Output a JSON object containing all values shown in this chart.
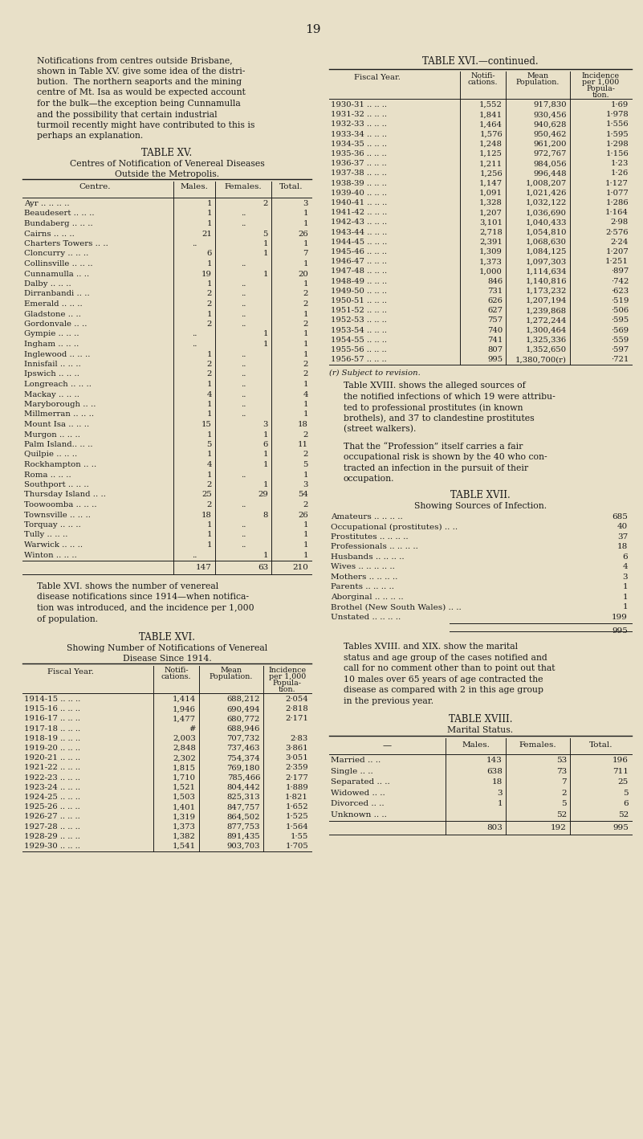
{
  "bg_color": "#e8e0c8",
  "text_color": "#1a1a1a",
  "page_number": "19",
  "left_text_paragraphs": [
    "Notifications from centres outside Brisbane,",
    "shown in Table XV. give some idea of the distri-",
    "bution.  The northern seaports and the mining",
    "centre of Mt. Isa as would be expected account",
    "for the bulk—the exception being Cunnamulla",
    "and the possibility that certain industrial",
    "turmoil recently might have contributed to this is",
    "perhaps an explanation."
  ],
  "table_xv_title": "TABLE XV.",
  "table_xv_subtitle1": "Centres of Notification of Venereal Diseases",
  "table_xv_subtitle2": "Outside the Metropolis.",
  "table_xv_rows": [
    [
      "Ayr .. .. .. ..",
      "1",
      "2",
      "3"
    ],
    [
      "Beaudesert .. .. ..",
      "1",
      "..",
      "1"
    ],
    [
      "Bundaberg .. .. ..",
      "1",
      "..",
      "1"
    ],
    [
      "Cairns .. .. ..",
      "21",
      "5",
      "26"
    ],
    [
      "Charters Towers .. ..",
      "..",
      "1",
      "1"
    ],
    [
      "Cloncurry .. .. ..",
      "6",
      "1",
      "7"
    ],
    [
      "Collinsville .. .. ..",
      "1",
      "..",
      "1"
    ],
    [
      "Cunnamulla .. ..",
      "19",
      "1",
      "20"
    ],
    [
      "Dalby .. .. ..",
      "1",
      "..",
      "1"
    ],
    [
      "Dirranbandi .. ..",
      "2",
      "..",
      "2"
    ],
    [
      "Emerald .. .. ..",
      "2",
      "..",
      "2"
    ],
    [
      "Gladstone .. ..",
      "1",
      "..",
      "1"
    ],
    [
      "Gordonvale .. ..",
      "2",
      "..",
      "2"
    ],
    [
      "Gympie .. .. ..",
      "..",
      "1",
      "1"
    ],
    [
      "Ingham .. .. ..",
      "..",
      "1",
      "1"
    ],
    [
      "Inglewood .. .. ..",
      "1",
      "..",
      "1"
    ],
    [
      "Innisfail .. .. ..",
      "2",
      "..",
      "2"
    ],
    [
      "Ipswich .. .. ..",
      "2",
      "..",
      "2"
    ],
    [
      "Longreach .. .. ..",
      "1",
      "..",
      "1"
    ],
    [
      "Mackay .. .. ..",
      "4",
      "..",
      "4"
    ],
    [
      "Maryborough .. ..",
      "1",
      "..",
      "1"
    ],
    [
      "Millmerran .. .. ..",
      "1",
      "..",
      "1"
    ],
    [
      "Mount Isa .. .. ..",
      "15",
      "3",
      "18"
    ],
    [
      "Murgon .. .. ..",
      "1",
      "1",
      "2"
    ],
    [
      "Palm Island.. .. ..",
      "5",
      "6",
      "11"
    ],
    [
      "Quilpie .. .. ..",
      "1",
      "1",
      "2"
    ],
    [
      "Rockhampton .. ..",
      "4",
      "1",
      "5"
    ],
    [
      "Roma .. .. ..",
      "1",
      "..",
      "1"
    ],
    [
      "Southport .. .. ..",
      "2",
      "1",
      "3"
    ],
    [
      "Thursday Island .. ..",
      "25",
      "29",
      "54"
    ],
    [
      "Toowoomba .. .. ..",
      "2",
      "..",
      "2"
    ],
    [
      "Townsville .. .. ..",
      "18",
      "8",
      "26"
    ],
    [
      "Torquay .. .. ..",
      "1",
      "..",
      "1"
    ],
    [
      "Tully .. .. ..",
      "1",
      "..",
      "1"
    ],
    [
      "Warwick .. .. ..",
      "1",
      "..",
      "1"
    ],
    [
      "Winton .. .. ..",
      "..",
      "1",
      "1"
    ]
  ],
  "table_xv_totals": [
    "",
    "147",
    "63",
    "210"
  ],
  "left_bottom_text": [
    "Table XVI. shows the number of venereal",
    "disease notifications since 1914—when notifica-",
    "tion was introduced, and the incidence per 1,000",
    "of population."
  ],
  "table_xvi_title": "TABLE XVI.",
  "table_xvi_subtitle": "Showing Number of Notifications of Venereal",
  "table_xvi_subtitle2": "Disease Since 1914.",
  "table_xvi_rows": [
    [
      "1914-15 .. .. ..",
      "1,414",
      "688,212",
      "2·054"
    ],
    [
      "1915-16 .. .. ..",
      "1,946",
      "690,494",
      "2·818"
    ],
    [
      "1916-17 .. .. ..",
      "1,477",
      "680,772",
      "2·171"
    ],
    [
      "1917-18 .. .. ..",
      "#",
      "688,946",
      ""
    ],
    [
      "1918-19 .. .. ..",
      "2,003",
      "707,732",
      "2·83"
    ],
    [
      "1919-20 .. .. ..",
      "2,848",
      "737,463",
      "3·861"
    ],
    [
      "1920-21 .. .. ..",
      "2,302",
      "754,374",
      "3·051"
    ],
    [
      "1921-22 .. .. ..",
      "1,815",
      "769,180",
      "2·359"
    ],
    [
      "1922-23 .. .. ..",
      "1,710",
      "785,466",
      "2·177"
    ],
    [
      "1923-24 .. .. ..",
      "1,521",
      "804,442",
      "1·889"
    ],
    [
      "1924-25 .. .. ..",
      "1,503",
      "825,313",
      "1·821"
    ],
    [
      "1925-26 .. .. ..",
      "1,401",
      "847,757",
      "1·652"
    ],
    [
      "1926-27 .. .. ..",
      "1,319",
      "864,502",
      "1·525"
    ],
    [
      "1927-28 .. .. ..",
      "1,373",
      "877,753",
      "1·564"
    ],
    [
      "1928-29 .. .. ..",
      "1,382",
      "891,435",
      "1·55"
    ],
    [
      "1929-30 .. .. ..",
      "1,541",
      "903,703",
      "1·705"
    ]
  ],
  "table_xvi_cont_title": "TABLE XVI.—continued.",
  "table_xvi_cont_rows": [
    [
      "1930-31 .. .. ..",
      "1,552",
      "917,830",
      "1·69"
    ],
    [
      "1931-32 .. .. ..",
      "1,841",
      "930,456",
      "1·978"
    ],
    [
      "1932-33 .. .. ..",
      "1,464",
      "940,628",
      "1·556"
    ],
    [
      "1933-34 .. .. ..",
      "1,576",
      "950,462",
      "1·595"
    ],
    [
      "1934-35 .. .. ..",
      "1,248",
      "961,200",
      "1·298"
    ],
    [
      "1935-36 .. .. ..",
      "1,125",
      "972,767",
      "1·156"
    ],
    [
      "1936-37 .. .. ..",
      "1,211",
      "984,056",
      "1·23"
    ],
    [
      "1937-38 .. .. ..",
      "1,256",
      "996,448",
      "1·26"
    ],
    [
      "1938-39 .. .. ..",
      "1,147",
      "1,008,207",
      "1·127"
    ],
    [
      "1939-40 .. .. ..",
      "1,091",
      "1,021,426",
      "1·077"
    ],
    [
      "1940-41 .. .. ..",
      "1,328",
      "1,032,122",
      "1·286"
    ],
    [
      "1941-42 .. .. ..",
      "1,207",
      "1,036,690",
      "1·164"
    ],
    [
      "1942-43 .. .. ..",
      "3,101",
      "1,040,433",
      "2·98"
    ],
    [
      "1943-44 .. .. ..",
      "2,718",
      "1,054,810",
      "2·576"
    ],
    [
      "1944-45 .. .. ..",
      "2,391",
      "1,068,630",
      "2·24"
    ],
    [
      "1945-46 .. .. ..",
      "1,309",
      "1,084,125",
      "1·207"
    ],
    [
      "1946-47 .. .. ..",
      "1,373",
      "1,097,303",
      "1·251"
    ],
    [
      "1947-48 .. .. ..",
      "1,000",
      "1,114,634",
      "·897"
    ],
    [
      "1948-49 .. .. ..",
      "846",
      "1,140,816",
      "·742"
    ],
    [
      "1949-50 .. .. ..",
      "731",
      "1,173,232",
      "·623"
    ],
    [
      "1950-51 .. .. ..",
      "626",
      "1,207,194",
      "·519"
    ],
    [
      "1951-52 .. .. ..",
      "627",
      "1,239,868",
      "·506"
    ],
    [
      "1952-53 .. .. ..",
      "757",
      "1,272,244",
      "·595"
    ],
    [
      "1953-54 .. .. ..",
      "740",
      "1,300,464",
      "·569"
    ],
    [
      "1954-55 .. .. ..",
      "741",
      "1,325,336",
      "·559"
    ],
    [
      "1955-56 .. .. ..",
      "807",
      "1,352,650",
      "·597"
    ],
    [
      "1956-57 .. .. ..",
      "995",
      "1,380,700(r)",
      "·721"
    ]
  ],
  "table_xvi_footnote": "(r) Subject to revision.",
  "right_middle_text": [
    "Table XVIII. shows the alleged sources of",
    "the notified infections of which 19 were attribu-",
    "ted to professional prostitutes (in known",
    "brothels), and 37 to clandestine prostitutes",
    "(street walkers).",
    "",
    "That the “Profession” itself carries a fair",
    "occupational risk is shown by the 40 who con-",
    "tracted an infection in the pursuit of their",
    "occupation."
  ],
  "table_xvii_title": "TABLE XVII.",
  "table_xvii_subtitle": "Showing Sources of Infection.",
  "table_xvii_rows": [
    [
      "Amateurs .. .. .. ..",
      "685"
    ],
    [
      "Occupational (prostitutes) .. ..",
      "40"
    ],
    [
      "Prostitutes .. .. .. ..",
      "37"
    ],
    [
      "Professionals .. .. .. ..",
      "18"
    ],
    [
      "Husbands .. .. .. ..",
      "6"
    ],
    [
      "Wives .. .. .. .. ..",
      "4"
    ],
    [
      "Mothers .. .. .. ..",
      "3"
    ],
    [
      "Parents .. .. .. ..",
      "1"
    ],
    [
      "Aborginal .. .. .. ..",
      "1"
    ],
    [
      "Brothel (New South Wales) .. ..",
      "1"
    ],
    [
      "Unstated .. .. .. ..",
      "199"
    ]
  ],
  "table_xvii_total": "995",
  "right_bottom_text": [
    "Tables XVIII. and XIX. show the marital",
    "status and age group of the cases notified and",
    "call for no comment other than to point out that",
    "10 males over 65 years of age contracted the",
    "disease as compared with 2 in this age group",
    "in the previous year."
  ],
  "table_xviii_title": "TABLE XVIII.",
  "table_xviii_subtitle": "Marital Status.",
  "table_xviii_rows": [
    [
      "Married .. ..",
      "143",
      "53",
      "196"
    ],
    [
      "Single .. ..",
      "638",
      "73",
      "711"
    ],
    [
      "Separated .. ..",
      "18",
      "7",
      "25"
    ],
    [
      "Widowed .. ..",
      "3",
      "2",
      "5"
    ],
    [
      "Divorced .. ..",
      "1",
      "5",
      "6"
    ],
    [
      "Unknown .. ..",
      "..",
      "52",
      "52"
    ]
  ],
  "table_xviii_totals": [
    "",
    "803",
    "192",
    "995"
  ]
}
